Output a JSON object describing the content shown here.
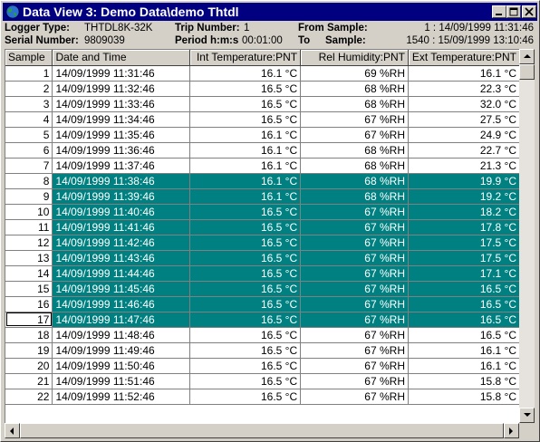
{
  "window": {
    "title": "Data View 3: Demo Data\\demo Thtdl"
  },
  "info": {
    "logger_type_label": "Logger Type:",
    "logger_type_value": "THTDL8K-32K",
    "trip_number_label": "Trip Number:",
    "trip_number_value": "1",
    "from_sample_label": "From Sample:",
    "from_sample_value": "1 : 14/09/1999 11:31:46",
    "serial_number_label": "Serial Number:",
    "serial_number_value": "9809039",
    "period_label": "Period h:m:s",
    "period_value": "00:01:00",
    "to_label": "To",
    "sample_label": "Sample:",
    "to_sample_value": "1540 : 15/09/1999 13:10:46"
  },
  "table": {
    "columns": [
      "Sample",
      "Date and Time",
      "Int Temperature:PNT",
      "Rel Humidity:PNT",
      "Ext Temperature:PNT"
    ],
    "rows": [
      {
        "n": "1",
        "dt": "14/09/1999 11:31:46",
        "int": "16.1 °C",
        "hum": "69 %RH",
        "ext": "16.1 °C",
        "sel": false
      },
      {
        "n": "2",
        "dt": "14/09/1999 11:32:46",
        "int": "16.5 °C",
        "hum": "68 %RH",
        "ext": "22.3 °C",
        "sel": false
      },
      {
        "n": "3",
        "dt": "14/09/1999 11:33:46",
        "int": "16.5 °C",
        "hum": "68 %RH",
        "ext": "32.0 °C",
        "sel": false
      },
      {
        "n": "4",
        "dt": "14/09/1999 11:34:46",
        "int": "16.5 °C",
        "hum": "67 %RH",
        "ext": "27.5 °C",
        "sel": false
      },
      {
        "n": "5",
        "dt": "14/09/1999 11:35:46",
        "int": "16.1 °C",
        "hum": "67 %RH",
        "ext": "24.9 °C",
        "sel": false
      },
      {
        "n": "6",
        "dt": "14/09/1999 11:36:46",
        "int": "16.1 °C",
        "hum": "68 %RH",
        "ext": "22.7 °C",
        "sel": false
      },
      {
        "n": "7",
        "dt": "14/09/1999 11:37:46",
        "int": "16.1 °C",
        "hum": "68 %RH",
        "ext": "21.3 °C",
        "sel": false
      },
      {
        "n": "8",
        "dt": "14/09/1999 11:38:46",
        "int": "16.1 °C",
        "hum": "68 %RH",
        "ext": "19.9 °C",
        "sel": true
      },
      {
        "n": "9",
        "dt": "14/09/1999 11:39:46",
        "int": "16.1 °C",
        "hum": "68 %RH",
        "ext": "19.2 °C",
        "sel": true
      },
      {
        "n": "10",
        "dt": "14/09/1999 11:40:46",
        "int": "16.5 °C",
        "hum": "67 %RH",
        "ext": "18.2 °C",
        "sel": true
      },
      {
        "n": "11",
        "dt": "14/09/1999 11:41:46",
        "int": "16.5 °C",
        "hum": "67 %RH",
        "ext": "17.8 °C",
        "sel": true
      },
      {
        "n": "12",
        "dt": "14/09/1999 11:42:46",
        "int": "16.5 °C",
        "hum": "67 %RH",
        "ext": "17.5 °C",
        "sel": true
      },
      {
        "n": "13",
        "dt": "14/09/1999 11:43:46",
        "int": "16.5 °C",
        "hum": "67 %RH",
        "ext": "17.5 °C",
        "sel": true
      },
      {
        "n": "14",
        "dt": "14/09/1999 11:44:46",
        "int": "16.5 °C",
        "hum": "67 %RH",
        "ext": "17.1 °C",
        "sel": true
      },
      {
        "n": "15",
        "dt": "14/09/1999 11:45:46",
        "int": "16.5 °C",
        "hum": "67 %RH",
        "ext": "16.5 °C",
        "sel": true
      },
      {
        "n": "16",
        "dt": "14/09/1999 11:46:46",
        "int": "16.5 °C",
        "hum": "67 %RH",
        "ext": "16.5 °C",
        "sel": true
      },
      {
        "n": "17",
        "dt": "14/09/1999 11:47:46",
        "int": "16.5 °C",
        "hum": "67 %RH",
        "ext": "16.5 °C",
        "sel": true,
        "cursor": true
      },
      {
        "n": "18",
        "dt": "14/09/1999 11:48:46",
        "int": "16.5 °C",
        "hum": "67 %RH",
        "ext": "16.5 °C",
        "sel": false
      },
      {
        "n": "19",
        "dt": "14/09/1999 11:49:46",
        "int": "16.5 °C",
        "hum": "67 %RH",
        "ext": "16.1 °C",
        "sel": false
      },
      {
        "n": "20",
        "dt": "14/09/1999 11:50:46",
        "int": "16.5 °C",
        "hum": "67 %RH",
        "ext": "16.1 °C",
        "sel": false
      },
      {
        "n": "21",
        "dt": "14/09/1999 11:51:46",
        "int": "16.5 °C",
        "hum": "67 %RH",
        "ext": "15.8 °C",
        "sel": false
      },
      {
        "n": "22",
        "dt": "14/09/1999 11:52:46",
        "int": "16.5 °C",
        "hum": "67 %RH",
        "ext": "15.8 °C",
        "sel": false
      }
    ]
  },
  "colors": {
    "title_bar": "#000080",
    "selection": "#008080"
  },
  "icons": {
    "app": "globe-icon",
    "minimize": "minimize-icon",
    "maximize": "maximize-icon",
    "close": "close-icon"
  }
}
